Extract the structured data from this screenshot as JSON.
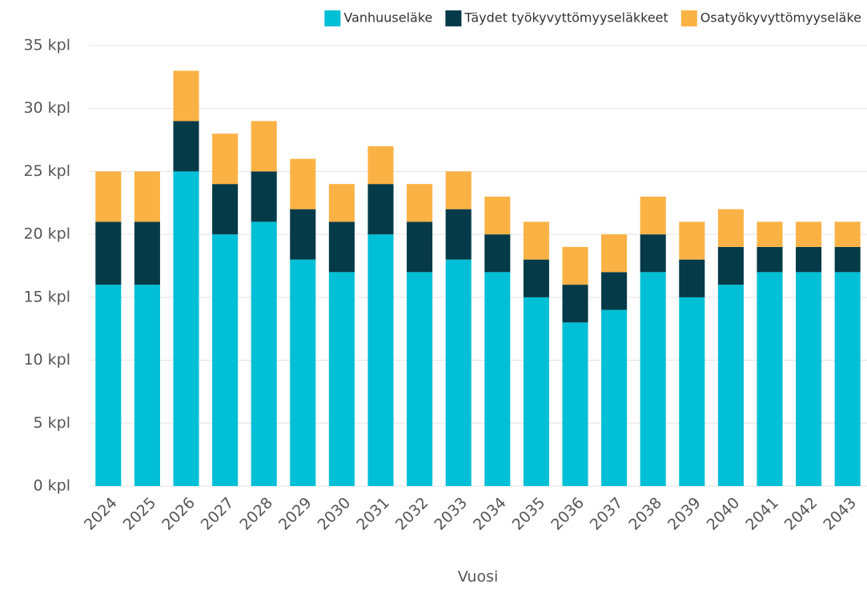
{
  "chart_data": {
    "type": "stacked_bar",
    "x_label": "Vuosi",
    "categories": [
      "2024",
      "2025",
      "2026",
      "2027",
      "2028",
      "2029",
      "2030",
      "2031",
      "2032",
      "2033",
      "2034",
      "2035",
      "2036",
      "2037",
      "2038",
      "2039",
      "2040",
      "2041",
      "2042",
      "2043"
    ],
    "series": [
      {
        "name": "Vanhuuseläke",
        "color": "#00bfd6",
        "values": [
          16,
          16,
          25,
          20,
          21,
          18,
          17,
          20,
          17,
          18,
          17,
          15,
          13,
          14,
          17,
          15,
          16,
          17,
          17,
          17
        ]
      },
      {
        "name": "Täydet työkyvyttömyyseläkkeet",
        "color": "#053a48",
        "values": [
          5,
          5,
          4,
          4,
          4,
          4,
          4,
          4,
          4,
          4,
          3,
          3,
          3,
          3,
          3,
          3,
          3,
          2,
          2,
          2
        ]
      },
      {
        "name": "Osatyökyvyttömyyseläke",
        "color": "#fbb245",
        "values": [
          4,
          4,
          4,
          4,
          4,
          4,
          3,
          3,
          3,
          3,
          3,
          3,
          3,
          3,
          3,
          3,
          3,
          2,
          2,
          2
        ]
      }
    ],
    "ylim": [
      0,
      35
    ],
    "yticks": [
      {
        "value": 0,
        "label": "0 kpl"
      },
      {
        "value": 5,
        "label": "5 kpl"
      },
      {
        "value": 10,
        "label": "10 kpl"
      },
      {
        "value": 15,
        "label": "15 kpl"
      },
      {
        "value": 20,
        "label": "20 kpl"
      },
      {
        "value": 25,
        "label": "25 kpl"
      },
      {
        "value": 30,
        "label": "30 kpl"
      },
      {
        "value": 35,
        "label": "35 kpl"
      }
    ],
    "grid": true,
    "legend": "top-right"
  }
}
